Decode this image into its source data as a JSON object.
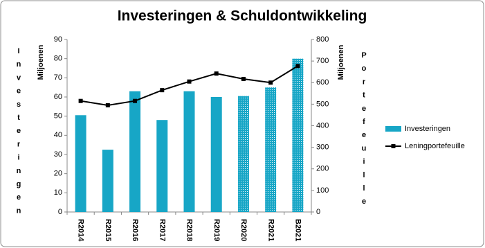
{
  "chart_data": {
    "type": "bar",
    "title": "Investeringen & Schuldontwikkeling",
    "ylabel": "Miljoenen",
    "y2label": "Miljoenen",
    "left_label": "Investeringen",
    "right_label": "Portefeuille",
    "categories": [
      "R2014",
      "R2015",
      "R2016",
      "R2017",
      "R2018",
      "R2019",
      "R2020",
      "R2021",
      "B2021"
    ],
    "series": [
      {
        "name": "Investeringen",
        "type": "bar",
        "color": "#17a6c6",
        "values": [
          50.5,
          32.5,
          63,
          48,
          63,
          60,
          60.5,
          65,
          80
        ],
        "hatched": [
          false,
          false,
          false,
          false,
          false,
          false,
          true,
          true,
          true
        ]
      },
      {
        "name": "Leningportefeuille",
        "type": "line",
        "axis": "y2",
        "color": "#000000",
        "values": [
          515,
          495,
          515,
          565,
          605,
          642,
          617,
          600,
          677
        ]
      }
    ],
    "ylim": [
      0,
      90
    ],
    "yticks": [
      0,
      10,
      20,
      30,
      40,
      50,
      60,
      70,
      80,
      90
    ],
    "y2lim": [
      0,
      800
    ],
    "y2ticks": [
      0,
      100,
      200,
      300,
      400,
      500,
      600,
      700,
      800
    ],
    "grid": false,
    "legend": "right"
  }
}
